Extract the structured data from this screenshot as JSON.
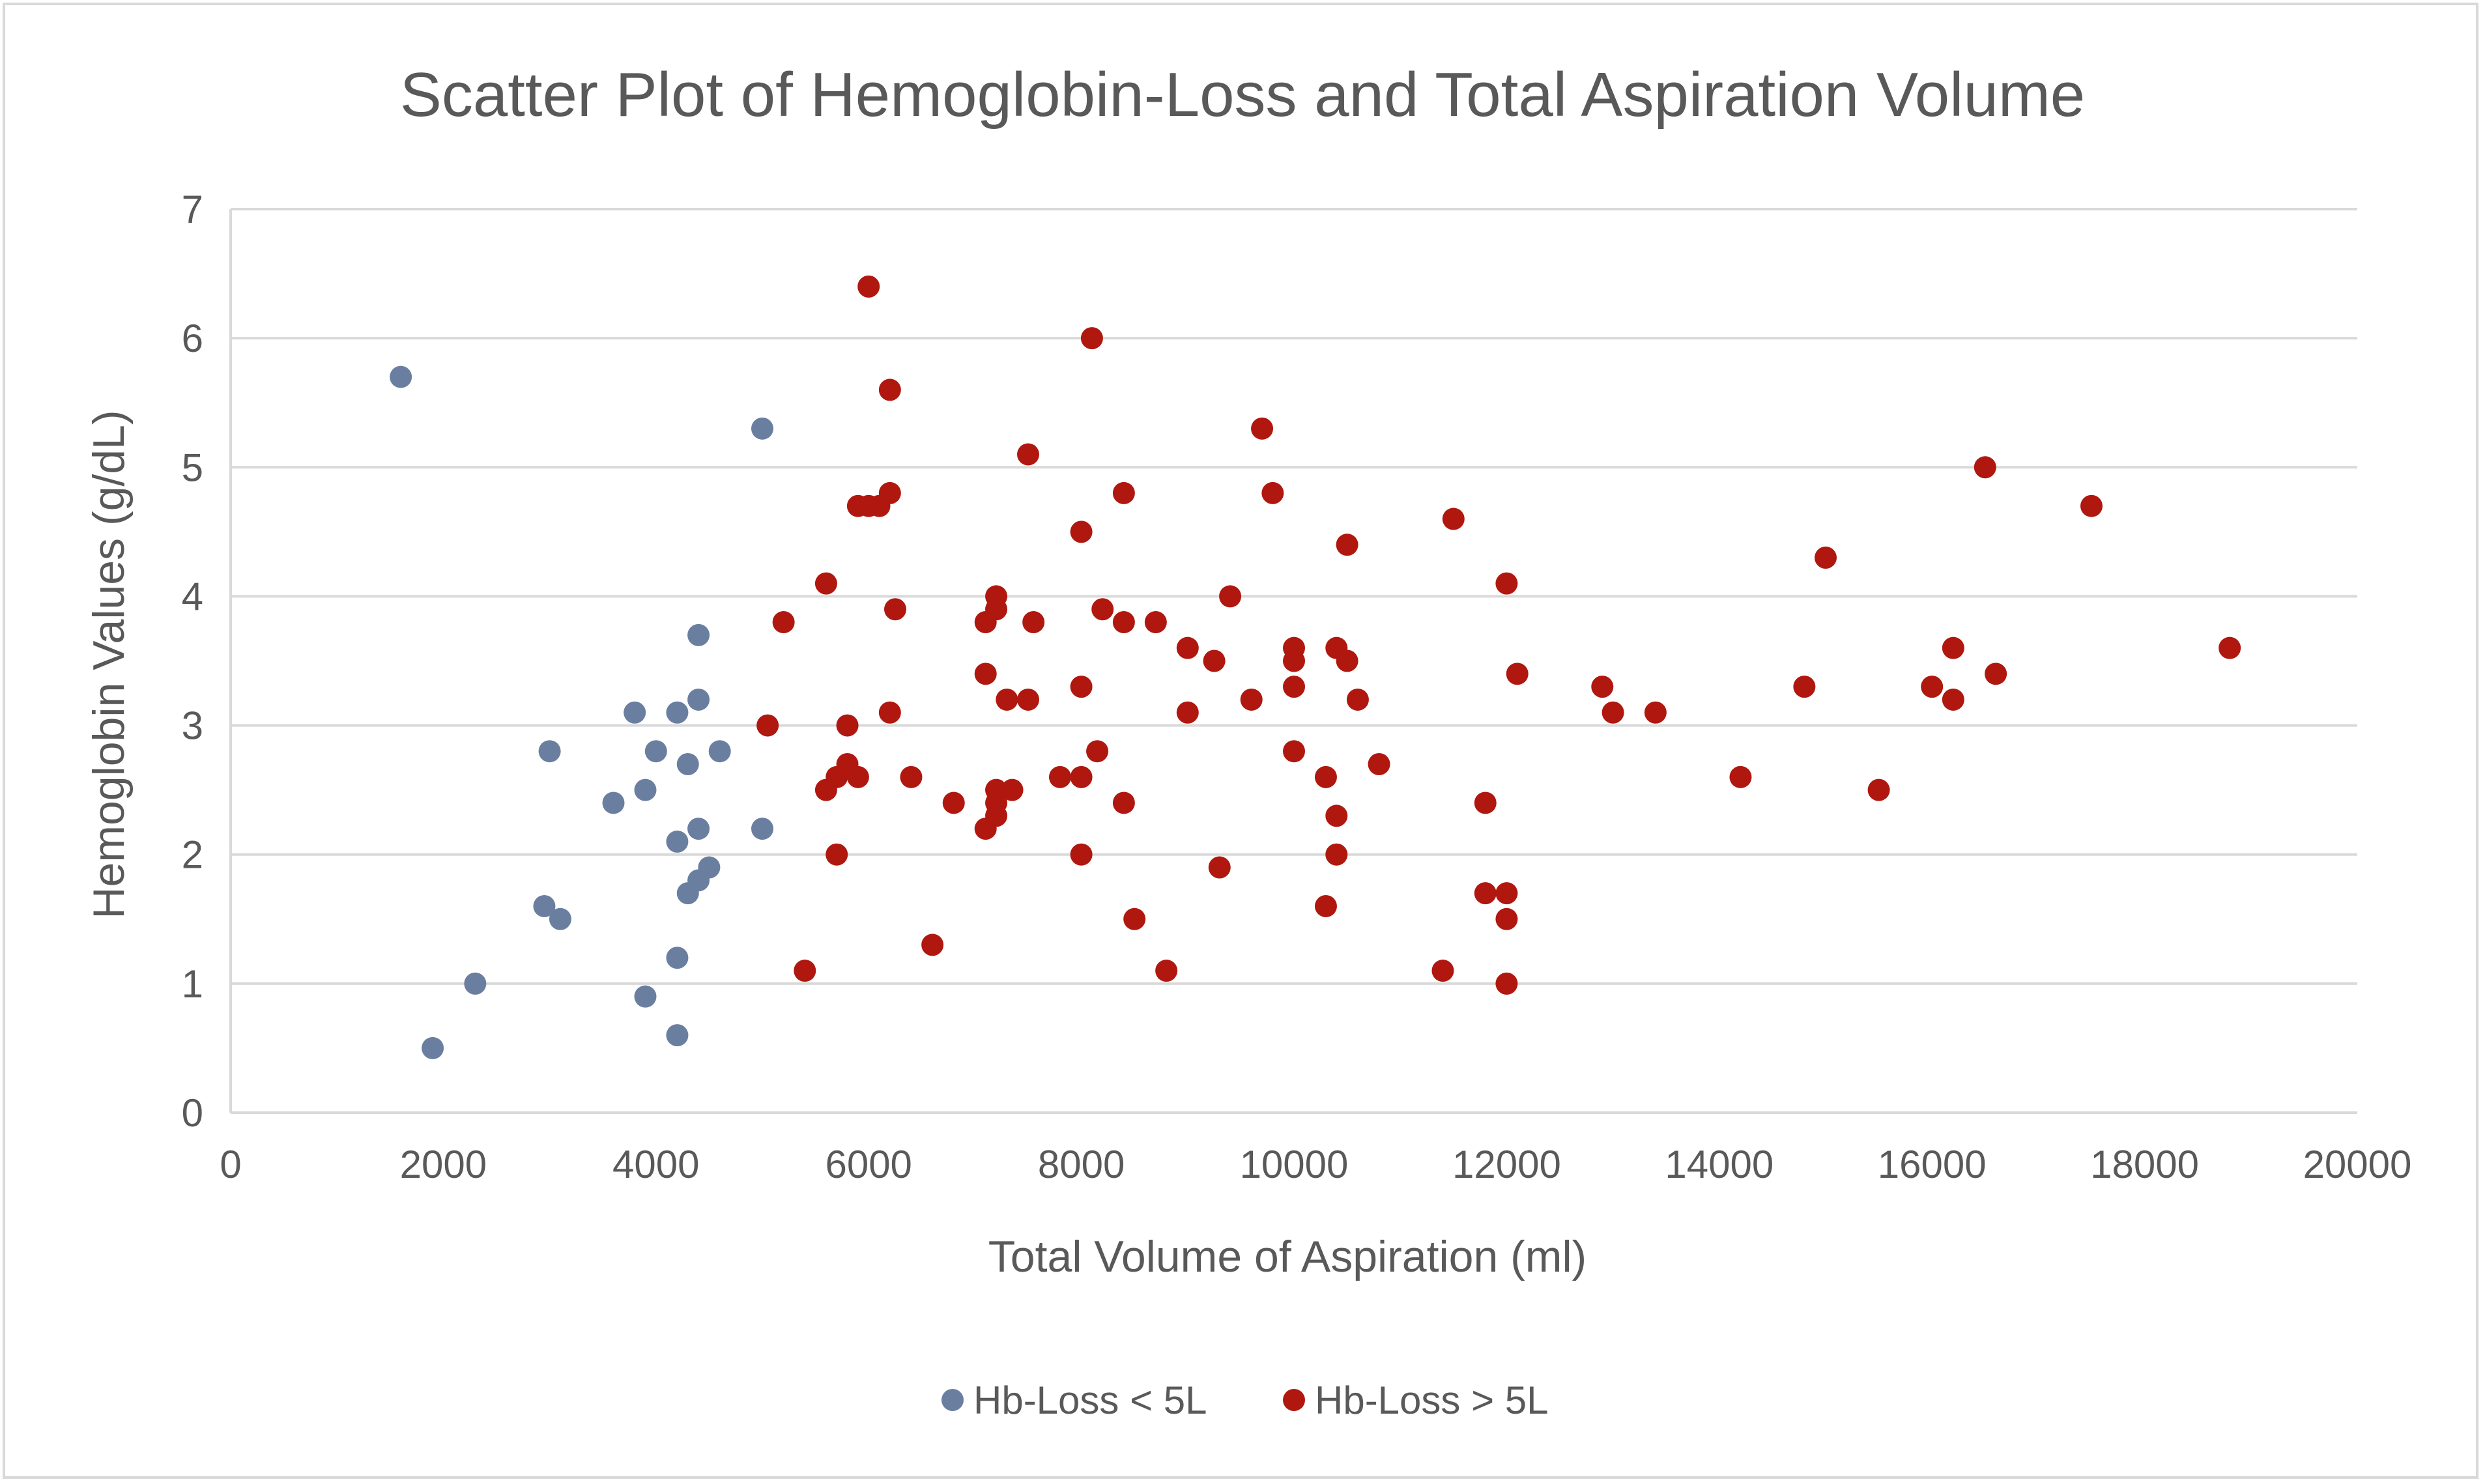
{
  "chart_data": {
    "type": "scatter",
    "title": "Scatter Plot of Hemoglobin-Loss and Total Aspiration Volume",
    "xlabel": "Total Volume of Aspiration (ml)",
    "ylabel": "Hemoglobin Values (g/dL)",
    "xlim": [
      0,
      20000
    ],
    "ylim": [
      0,
      7
    ],
    "x_ticks": [
      0,
      2000,
      4000,
      6000,
      8000,
      10000,
      12000,
      14000,
      16000,
      18000,
      20000
    ],
    "y_ticks": [
      0,
      1,
      2,
      3,
      4,
      5,
      6,
      7
    ],
    "grid": "horizontal",
    "legend_position": "bottom",
    "series": [
      {
        "name": "Hb-Loss < 5L",
        "color": "#6a7fa0",
        "points": [
          [
            1600,
            5.7
          ],
          [
            1900,
            0.5
          ],
          [
            2300,
            1.0
          ],
          [
            2950,
            1.6
          ],
          [
            3000,
            2.8
          ],
          [
            3100,
            1.5
          ],
          [
            3600,
            2.4
          ],
          [
            3800,
            3.1
          ],
          [
            3900,
            2.5
          ],
          [
            3900,
            0.9
          ],
          [
            4000,
            2.8
          ],
          [
            4200,
            3.1
          ],
          [
            4200,
            2.1
          ],
          [
            4200,
            1.2
          ],
          [
            4200,
            0.6
          ],
          [
            4300,
            2.7
          ],
          [
            4300,
            1.7
          ],
          [
            4400,
            3.7
          ],
          [
            4400,
            3.2
          ],
          [
            4400,
            2.2
          ],
          [
            4400,
            1.8
          ],
          [
            4500,
            1.9
          ],
          [
            4600,
            2.8
          ],
          [
            5000,
            5.3
          ],
          [
            5000,
            2.2
          ]
        ]
      },
      {
        "name": "Hb-Loss > 5L",
        "color": "#b0170f",
        "points": [
          [
            5050,
            3.0
          ],
          [
            5200,
            3.8
          ],
          [
            5400,
            1.1
          ],
          [
            5600,
            4.1
          ],
          [
            5600,
            2.5
          ],
          [
            5700,
            2.6
          ],
          [
            5700,
            2.0
          ],
          [
            5800,
            3.0
          ],
          [
            5800,
            2.7
          ],
          [
            5900,
            4.7
          ],
          [
            5900,
            2.6
          ],
          [
            6000,
            6.4
          ],
          [
            6000,
            4.7
          ],
          [
            6100,
            4.7
          ],
          [
            6200,
            5.6
          ],
          [
            6200,
            4.8
          ],
          [
            6200,
            3.1
          ],
          [
            6250,
            3.9
          ],
          [
            6400,
            2.6
          ],
          [
            6600,
            1.3
          ],
          [
            6800,
            2.4
          ],
          [
            7100,
            3.8
          ],
          [
            7100,
            3.4
          ],
          [
            7100,
            2.2
          ],
          [
            7200,
            4.0
          ],
          [
            7200,
            3.9
          ],
          [
            7200,
            2.5
          ],
          [
            7200,
            2.4
          ],
          [
            7200,
            2.3
          ],
          [
            7300,
            3.2
          ],
          [
            7350,
            2.5
          ],
          [
            7500,
            5.1
          ],
          [
            7500,
            3.2
          ],
          [
            7550,
            3.8
          ],
          [
            7800,
            2.6
          ],
          [
            8000,
            4.5
          ],
          [
            8000,
            3.3
          ],
          [
            8000,
            2.6
          ],
          [
            8000,
            2.0
          ],
          [
            8100,
            6.0
          ],
          [
            8150,
            2.8
          ],
          [
            8200,
            3.9
          ],
          [
            8400,
            4.8
          ],
          [
            8400,
            3.8
          ],
          [
            8400,
            2.4
          ],
          [
            8500,
            1.5
          ],
          [
            8700,
            3.8
          ],
          [
            8800,
            1.1
          ],
          [
            9000,
            3.6
          ],
          [
            9000,
            3.1
          ],
          [
            9250,
            3.5
          ],
          [
            9300,
            1.9
          ],
          [
            9400,
            4.0
          ],
          [
            9600,
            3.2
          ],
          [
            9700,
            5.3
          ],
          [
            9800,
            4.8
          ],
          [
            10000,
            3.6
          ],
          [
            10000,
            3.5
          ],
          [
            10000,
            3.3
          ],
          [
            10000,
            2.8
          ],
          [
            10300,
            2.6
          ],
          [
            10300,
            1.6
          ],
          [
            10400,
            3.6
          ],
          [
            10400,
            2.3
          ],
          [
            10400,
            2.0
          ],
          [
            10500,
            4.4
          ],
          [
            10500,
            3.5
          ],
          [
            10600,
            3.2
          ],
          [
            10800,
            2.7
          ],
          [
            11400,
            1.1
          ],
          [
            11500,
            4.6
          ],
          [
            11800,
            2.4
          ],
          [
            11800,
            1.7
          ],
          [
            12000,
            4.1
          ],
          [
            12000,
            1.7
          ],
          [
            12000,
            1.5
          ],
          [
            12000,
            1.0
          ],
          [
            12100,
            3.4
          ],
          [
            12900,
            3.3
          ],
          [
            13000,
            3.1
          ],
          [
            13400,
            3.1
          ],
          [
            14200,
            2.6
          ],
          [
            14800,
            3.3
          ],
          [
            15000,
            4.3
          ],
          [
            15500,
            2.5
          ],
          [
            16000,
            3.3
          ],
          [
            16200,
            3.6
          ],
          [
            16200,
            3.2
          ],
          [
            16500,
            5.0
          ],
          [
            16600,
            3.4
          ],
          [
            17500,
            4.7
          ],
          [
            18800,
            3.6
          ]
        ]
      }
    ]
  }
}
